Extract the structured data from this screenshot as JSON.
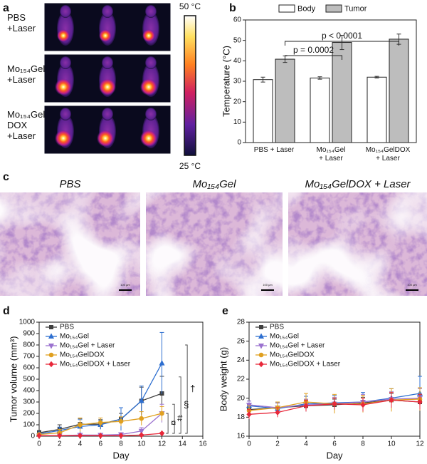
{
  "panel_labels": [
    "a",
    "b",
    "c",
    "d",
    "e"
  ],
  "panel_a": {
    "rows": [
      "PBS\n+Laser",
      "Mo₁₅₄Gel\n+Laser",
      "Mo₁₅₄Gel\nDOX\n+Laser"
    ],
    "colorbar": {
      "max": "50 °C",
      "min": "25 °C"
    }
  },
  "panel_c": {
    "titles": [
      "PBS",
      "Mo₁₅₄Gel",
      "Mo₁₅₄GelDOX + Laser"
    ],
    "scale_bars": [
      "100 μm",
      "100 μm",
      "100 μm"
    ]
  },
  "chart_data": [
    {
      "type": "bar",
      "ylabel": "Temperature (°C)",
      "categories": [
        "PBS + Laser",
        "Mo₁₅₄Gel\n+ Laser",
        "Mo₁₅₄GelDOX\n+ Laser"
      ],
      "ylim": [
        0,
        60
      ],
      "yticks": [
        0,
        10,
        20,
        30,
        40,
        50,
        60
      ],
      "legend": "top",
      "series": [
        {
          "name": "Body",
          "color": "#ffffff",
          "values": [
            30.8,
            31.6,
            32.0
          ],
          "errors": [
            1.2,
            0.6,
            0.4
          ]
        },
        {
          "name": "Tumor",
          "color": "#bdbdbd",
          "values": [
            40.8,
            49.0,
            50.6
          ],
          "errors": [
            1.6,
            3.5,
            2.5
          ]
        }
      ],
      "annotations": [
        "p = 0.0002",
        "p < 0.0001"
      ]
    },
    {
      "type": "line",
      "xlabel": "Day",
      "ylabel": "Tumor volume (mm³)",
      "x": [
        0,
        2,
        4,
        6,
        8,
        10,
        12
      ],
      "xlim": [
        0,
        16
      ],
      "xticks": [
        0,
        2,
        4,
        6,
        8,
        10,
        12,
        14,
        16
      ],
      "ylim": [
        0,
        1000
      ],
      "yticks": [
        0,
        100,
        200,
        300,
        400,
        500,
        600,
        700,
        800,
        900,
        1000
      ],
      "legend": "upper left",
      "series": [
        {
          "name": "PBS",
          "color": "#404040",
          "marker": "square",
          "values": [
            30,
            60,
            105,
            105,
            150,
            310,
            375
          ],
          "errors": [
            20,
            40,
            50,
            40,
            50,
            120,
            150
          ]
        },
        {
          "name": "Mo₁₅₄Gel",
          "color": "#2e6fd0",
          "marker": "triangle",
          "values": [
            20,
            50,
            85,
            100,
            150,
            310,
            640
          ],
          "errors": [
            10,
            30,
            60,
            40,
            100,
            130,
            270
          ]
        },
        {
          "name": "Mo₁₅₄Gel + Laser",
          "color": "#9b72cf",
          "marker": "triangle-down",
          "values": [
            5,
            5,
            10,
            10,
            15,
            45,
            200
          ],
          "errors": [
            5,
            5,
            10,
            10,
            15,
            30,
            80
          ]
        },
        {
          "name": "Mo₁₅₄GelDOX",
          "color": "#e0a020",
          "marker": "circle",
          "values": [
            15,
            30,
            100,
            120,
            130,
            155,
            200
          ],
          "errors": [
            10,
            30,
            60,
            40,
            40,
            60,
            60
          ]
        },
        {
          "name": "Mo₁₅₄GelDOX + Laser",
          "color": "#e8283a",
          "marker": "diamond",
          "values": [
            5,
            5,
            5,
            5,
            5,
            10,
            25
          ],
          "errors": [
            3,
            3,
            3,
            3,
            3,
            5,
            8
          ]
        }
      ],
      "annotations": [
        {
          "text": "¤",
          "color": "#e0a020"
        },
        {
          "text": "#",
          "color": "#9b72cf"
        },
        {
          "text": "§",
          "color": "#404040"
        },
        {
          "text": "†",
          "color": "#2e6fd0"
        }
      ]
    },
    {
      "type": "line",
      "xlabel": "Day",
      "ylabel": "Body weight (g)",
      "x": [
        0,
        2,
        4,
        6,
        8,
        10,
        12
      ],
      "xlim": [
        0,
        12
      ],
      "xticks": [
        0,
        2,
        4,
        6,
        8,
        10,
        12
      ],
      "ylim": [
        16,
        28
      ],
      "yticks": [
        16,
        18,
        20,
        22,
        24,
        26,
        28
      ],
      "legend": "upper left",
      "series": [
        {
          "name": "PBS",
          "color": "#404040",
          "marker": "square",
          "values": [
            18.8,
            19.0,
            19.2,
            19.3,
            19.5,
            19.8,
            19.6
          ],
          "errors": [
            0.5,
            0.5,
            0.6,
            0.6,
            0.6,
            0.7,
            0.7
          ]
        },
        {
          "name": "Mo₁₅₄Gel",
          "color": "#2e6fd0",
          "marker": "triangle",
          "values": [
            19.2,
            18.9,
            19.4,
            19.5,
            19.6,
            20.0,
            20.5
          ],
          "errors": [
            0.5,
            0.6,
            0.8,
            0.8,
            1.0,
            1.0,
            1.8
          ]
        },
        {
          "name": "Mo₁₅₄Gel + Laser",
          "color": "#9b72cf",
          "marker": "triangle-down",
          "values": [
            19.3,
            19.0,
            19.3,
            19.4,
            19.6,
            19.9,
            20.0
          ],
          "errors": [
            0.4,
            0.5,
            0.6,
            0.7,
            0.8,
            0.8,
            1.0
          ]
        },
        {
          "name": "Mo₁₅₄GelDOX",
          "color": "#e0a020",
          "marker": "circle",
          "values": [
            18.7,
            19.0,
            19.6,
            19.4,
            19.4,
            19.8,
            19.9
          ],
          "errors": [
            0.5,
            0.6,
            0.9,
            1.0,
            0.9,
            1.2,
            1.2
          ]
        },
        {
          "name": "Mo₁₅₄GelDOX + Laser",
          "color": "#e8283a",
          "marker": "diamond",
          "values": [
            18.3,
            18.5,
            19.2,
            19.4,
            19.3,
            19.8,
            19.6
          ],
          "errors": [
            0.5,
            0.5,
            0.6,
            0.6,
            0.7,
            0.8,
            0.8
          ]
        }
      ]
    }
  ]
}
